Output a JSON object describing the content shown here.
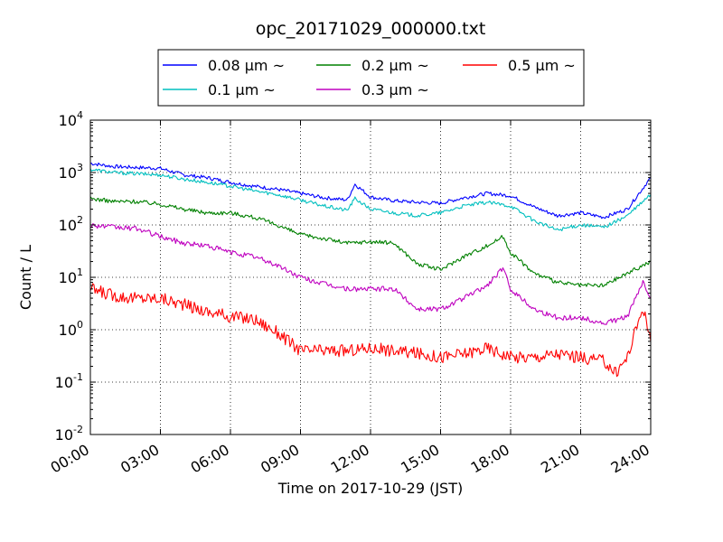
{
  "chart_data": {
    "type": "line",
    "title": "opc_20171029_000000.txt",
    "xlabel": "Time on 2017-10-29 (JST)",
    "ylabel": "Count / L",
    "y_scale": "log",
    "ylim": [
      0.01,
      10000
    ],
    "xlim": [
      "00:00",
      "24:00"
    ],
    "x_ticks": [
      "00:00",
      "03:00",
      "06:00",
      "09:00",
      "12:00",
      "15:00",
      "18:00",
      "21:00",
      "24:00"
    ],
    "y_ticks": [
      {
        "base": "10",
        "exp": "-2",
        "value": 0.01
      },
      {
        "base": "10",
        "exp": "-1",
        "value": 0.1
      },
      {
        "base": "10",
        "exp": "0",
        "value": 1
      },
      {
        "base": "10",
        "exp": "1",
        "value": 10
      },
      {
        "base": "10",
        "exp": "2",
        "value": 100
      },
      {
        "base": "10",
        "exp": "3",
        "value": 1000
      },
      {
        "base": "10",
        "exp": "4",
        "value": 10000
      }
    ],
    "grid": true,
    "legend_placement": "top-center, above plot",
    "series": [
      {
        "name": "0.08 μm ~",
        "color": "#0000ff",
        "x": [
          "00:00",
          "01:00",
          "02:00",
          "03:00",
          "04:00",
          "05:00",
          "06:00",
          "07:00",
          "08:00",
          "09:00",
          "10:00",
          "11:00",
          "11:20",
          "12:00",
          "13:00",
          "14:00",
          "15:00",
          "16:00",
          "17:00",
          "18:00",
          "19:00",
          "20:00",
          "21:00",
          "22:00",
          "23:00",
          "24:00"
        ],
        "values": [
          1500,
          1300,
          1250,
          1200,
          900,
          800,
          650,
          550,
          480,
          400,
          330,
          300,
          600,
          340,
          290,
          270,
          260,
          330,
          400,
          360,
          220,
          150,
          170,
          140,
          200,
          800
        ]
      },
      {
        "name": "0.1 μm ~",
        "color": "#00bfbf",
        "x": [
          "00:00",
          "01:00",
          "02:00",
          "03:00",
          "04:00",
          "05:00",
          "06:00",
          "07:00",
          "08:00",
          "09:00",
          "10:00",
          "11:00",
          "11:20",
          "12:00",
          "13:00",
          "14:00",
          "15:00",
          "16:00",
          "17:00",
          "18:00",
          "19:00",
          "20:00",
          "21:00",
          "22:00",
          "23:00",
          "24:00"
        ],
        "values": [
          1150,
          1000,
          950,
          900,
          750,
          650,
          550,
          450,
          380,
          300,
          230,
          190,
          320,
          200,
          170,
          150,
          170,
          230,
          270,
          230,
          120,
          80,
          100,
          90,
          150,
          380
        ]
      },
      {
        "name": "0.2 μm ~",
        "color": "#008000",
        "x": [
          "00:00",
          "01:00",
          "02:00",
          "03:00",
          "04:00",
          "05:00",
          "06:00",
          "07:00",
          "08:00",
          "09:00",
          "10:00",
          "11:00",
          "12:00",
          "13:00",
          "14:00",
          "15:00",
          "16:00",
          "17:00",
          "17:40",
          "18:00",
          "19:00",
          "20:00",
          "21:00",
          "22:00",
          "23:00",
          "24:00"
        ],
        "values": [
          320,
          280,
          280,
          250,
          200,
          170,
          170,
          140,
          100,
          65,
          55,
          45,
          48,
          45,
          18,
          14,
          25,
          40,
          60,
          30,
          12,
          8,
          7,
          7,
          12,
          20
        ]
      },
      {
        "name": "0.3 μm ~",
        "color": "#bf00bf",
        "x": [
          "00:00",
          "01:00",
          "02:00",
          "03:00",
          "04:00",
          "05:00",
          "06:00",
          "07:00",
          "08:00",
          "09:00",
          "10:00",
          "11:00",
          "12:00",
          "13:00",
          "14:00",
          "15:00",
          "16:00",
          "17:00",
          "17:40",
          "18:00",
          "19:00",
          "20:00",
          "21:00",
          "22:00",
          "23:00",
          "23:40",
          "24:00"
        ],
        "values": [
          100,
          90,
          85,
          60,
          45,
          40,
          30,
          25,
          17,
          10,
          7.5,
          6,
          6,
          6,
          2.5,
          2.5,
          4,
          7,
          15,
          6,
          2.5,
          1.7,
          1.7,
          1.3,
          1.8,
          8,
          4
        ]
      },
      {
        "name": "0.5 μm ~",
        "color": "#ff0000",
        "x": [
          "00:00",
          "01:00",
          "02:00",
          "03:00",
          "04:00",
          "05:00",
          "06:00",
          "07:00",
          "08:00",
          "09:00",
          "10:00",
          "11:00",
          "12:00",
          "13:00",
          "14:00",
          "15:00",
          "16:00",
          "17:00",
          "18:00",
          "19:00",
          "20:00",
          "21:00",
          "22:00",
          "22:30",
          "23:00",
          "23:40",
          "24:00"
        ],
        "values": [
          6,
          4.5,
          4,
          4,
          3,
          2.2,
          1.8,
          1.6,
          0.9,
          0.4,
          0.4,
          0.4,
          0.45,
          0.4,
          0.35,
          0.3,
          0.35,
          0.45,
          0.3,
          0.3,
          0.35,
          0.3,
          0.25,
          0.15,
          0.3,
          2.8,
          0.6
        ]
      }
    ]
  }
}
